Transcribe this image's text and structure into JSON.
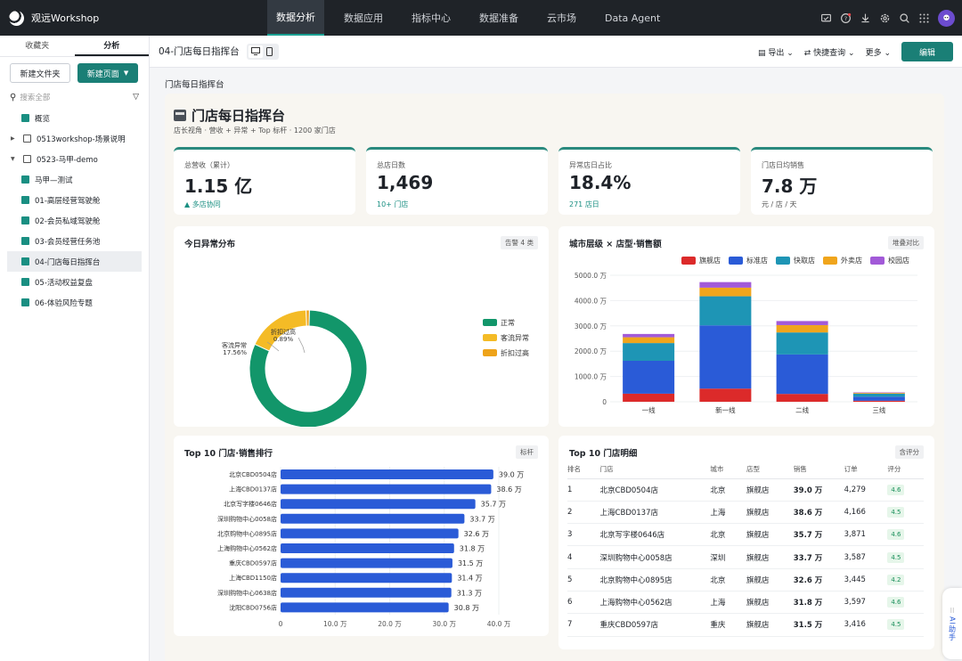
{
  "app": {
    "name": "观远Workshop"
  },
  "nav": [
    "数据分析",
    "数据应用",
    "指标中心",
    "数据准备",
    "云市场",
    "Data Agent"
  ],
  "sidebar": {
    "tabs": [
      "收藏夹",
      "分析"
    ],
    "new_folder": "新建文件夹",
    "new_page": "新建页面",
    "search_placeholder": "搜索全部",
    "items": [
      {
        "label": "概览",
        "type": "report",
        "level": 1
      },
      {
        "label": "0513workshop-场景说明",
        "type": "folder",
        "level": 0,
        "expanded": false
      },
      {
        "label": "0523-马甲-demo",
        "type": "folder",
        "level": 0,
        "expanded": true
      },
      {
        "label": "马甲—测试",
        "type": "report",
        "level": 1
      },
      {
        "label": "01-高层经营驾驶舱",
        "type": "report",
        "level": 1
      },
      {
        "label": "02-会员私域驾驶舱",
        "type": "report",
        "level": 1
      },
      {
        "label": "03-会员经营任务池",
        "type": "report",
        "level": 1
      },
      {
        "label": "04-门店每日指挥台",
        "type": "report",
        "level": 1,
        "selected": true
      },
      {
        "label": "05-活动权益复盘",
        "type": "report",
        "level": 1
      },
      {
        "label": "06-体验风险专题",
        "type": "report",
        "level": 1
      }
    ]
  },
  "page": {
    "title": "04-门店每日指挥台",
    "actions": {
      "export": "导出",
      "quick_query": "快捷查询",
      "more": "更多",
      "edit": "编辑"
    }
  },
  "dashboard": {
    "section_label": "门店每日指挥台",
    "title": "门店每日指挥台",
    "subtitle": "店长视角 · 营收 + 异常 + Top 标杆 · 1200 家门店",
    "kpis": [
      {
        "label": "总营收（累计）",
        "value": "1.15 亿",
        "sub": "▲ 多店协同",
        "sub_color": "#1a8f82"
      },
      {
        "label": "总店日数",
        "value": "1,469",
        "sub": "10+ 门店",
        "sub_color": "#1a8f82"
      },
      {
        "label": "异常店日占比",
        "value": "18.4%",
        "sub": "271 店日",
        "sub_color": "#1a8f82"
      },
      {
        "label": "门店日均销售",
        "value": "7.8 万",
        "sub": "元 / 店 / 天",
        "sub_color": "#555"
      }
    ],
    "cards": {
      "anomaly": {
        "title": "今日异常分布",
        "tag": "告警 4 类"
      },
      "city": {
        "title": "城市层级 × 店型·销售额",
        "tag": "堆叠对比"
      },
      "top10": {
        "title": "Top 10 门店·销售排行",
        "tag": "标杆"
      },
      "detail": {
        "title": "Top 10 门店明细",
        "tag": "含评分"
      }
    },
    "table": {
      "headers": [
        "排名",
        "门店",
        "城市",
        "店型",
        "销售",
        "订单",
        "评分"
      ],
      "rows": [
        [
          "1",
          "北京CBD0504店",
          "北京",
          "旗舰店",
          "39.0 万",
          "4,279",
          "4.6"
        ],
        [
          "2",
          "上海CBD0137店",
          "上海",
          "旗舰店",
          "38.6 万",
          "4,166",
          "4.5"
        ],
        [
          "3",
          "北京写字楼0646店",
          "北京",
          "旗舰店",
          "35.7 万",
          "3,871",
          "4.6"
        ],
        [
          "4",
          "深圳购物中心0058店",
          "深圳",
          "旗舰店",
          "33.7 万",
          "3,587",
          "4.5"
        ],
        [
          "5",
          "北京购物中心0895店",
          "北京",
          "旗舰店",
          "32.6 万",
          "3,445",
          "4.2"
        ],
        [
          "6",
          "上海购物中心0562店",
          "上海",
          "旗舰店",
          "31.8 万",
          "3,597",
          "4.6"
        ],
        [
          "7",
          "重庆CBD0597店",
          "重庆",
          "旗舰店",
          "31.5 万",
          "3,416",
          "4.5"
        ]
      ]
    },
    "ai_button": "AI助手"
  },
  "chart_data": [
    {
      "type": "pie",
      "title": "今日异常分布",
      "categories": [
        "正常",
        "客流异常",
        "折扣过高"
      ],
      "values": [
        81.55,
        17.56,
        0.89
      ],
      "labels": [
        "81.55%",
        "17.56%",
        "0.89%"
      ],
      "colors": [
        "#12966a",
        "#f4bb26",
        "#eea31a"
      ],
      "legend": "right"
    },
    {
      "type": "bar",
      "stacked": true,
      "title": "城市层级 × 店型·销售额",
      "categories": [
        "一线",
        "新一线",
        "二线",
        "三线"
      ],
      "series": [
        {
          "name": "旗舰店",
          "values": [
            320,
            520,
            310,
            40
          ],
          "color": "#dc2a2a"
        },
        {
          "name": "标准店",
          "values": [
            1300,
            2500,
            1560,
            160
          ],
          "color": "#2a5bd7"
        },
        {
          "name": "快取店",
          "values": [
            700,
            1150,
            870,
            120
          ],
          "color": "#1e95b5"
        },
        {
          "name": "外卖店",
          "values": [
            230,
            340,
            290,
            30
          ],
          "color": "#f0a51c"
        },
        {
          "name": "校园店",
          "values": [
            130,
            220,
            160,
            20
          ],
          "color": "#a25ad8"
        }
      ],
      "yticks": [
        "0",
        "1000.0 万",
        "2000.0 万",
        "3000.0 万",
        "4000.0 万",
        "5000.0 万"
      ],
      "ylim": [
        0,
        5000
      ],
      "legend": "top"
    },
    {
      "type": "bar",
      "orientation": "horizontal",
      "title": "Top 10 门店·销售排行",
      "categories": [
        "北京CBD0504店",
        "上海CBD0137店",
        "北京写字楼0646店",
        "深圳购物中心0058店",
        "北京购物中心0895店",
        "上海购物中心0562店",
        "重庆CBD0597店",
        "上海CBD1150店",
        "深圳购物中心0638店",
        "沈阳CBD0756店"
      ],
      "values": [
        39.0,
        38.6,
        35.7,
        33.7,
        32.6,
        31.8,
        31.5,
        31.4,
        31.3,
        30.8
      ],
      "labels": [
        "39.0 万",
        "38.6 万",
        "35.7 万",
        "33.7 万",
        "32.6 万",
        "31.8 万",
        "31.5 万",
        "31.4 万",
        "31.3 万",
        "30.8 万"
      ],
      "xticks": [
        "0",
        "10.0 万",
        "20.0 万",
        "30.0 万",
        "40.0 万"
      ],
      "xlim": [
        0,
        40
      ],
      "color": "#2a5bd7"
    }
  ]
}
